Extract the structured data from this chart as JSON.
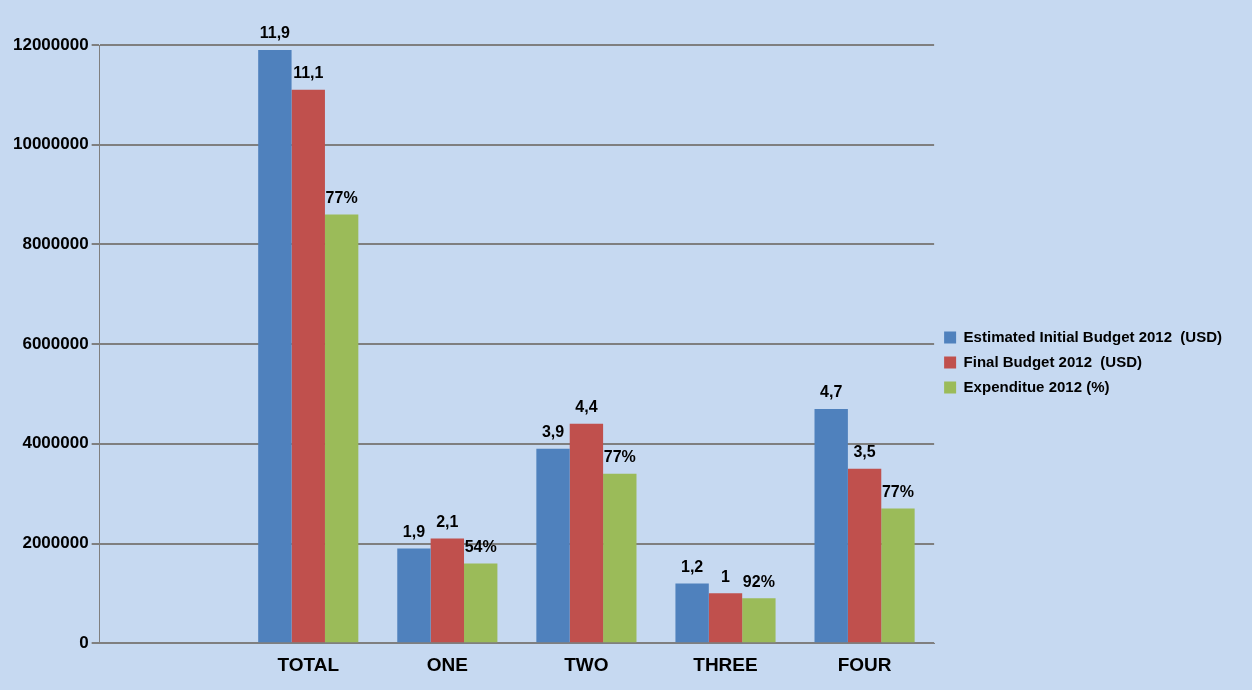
{
  "chart_data": {
    "type": "bar",
    "categories": [
      null,
      "TOTAL",
      "ONE",
      "TWO",
      "THREE",
      "FOUR"
    ],
    "series": [
      {
        "name": "Estimated Initial Budget 2012  (USD)",
        "color": "#4f81bd",
        "values": [
          null,
          11900000,
          1900000,
          3900000,
          1200000,
          4700000
        ]
      },
      {
        "name": "Final Budget 2012  (USD)",
        "color": "#c0504d",
        "values": [
          null,
          11100000,
          2100000,
          4400000,
          1000000,
          3500000
        ]
      },
      {
        "name": "Expenditue 2012 (%)",
        "color": "#9bbb59",
        "values": [
          null,
          8600000,
          1600000,
          3400000,
          900000,
          2700000
        ]
      }
    ],
    "annotations": [
      "11,9",
      "11,1",
      "77%",
      "1,9",
      "2,1",
      "54%",
      "3,9",
      "4,4",
      "77%",
      "1,2",
      "1",
      "92%",
      "4,7",
      "3,5",
      "77%"
    ],
    "ylim": [
      0,
      12000000
    ],
    "yticks": [
      0,
      2000000,
      4000000,
      6000000,
      8000000,
      10000000,
      12000000
    ],
    "grid": "y",
    "legend": "right"
  }
}
